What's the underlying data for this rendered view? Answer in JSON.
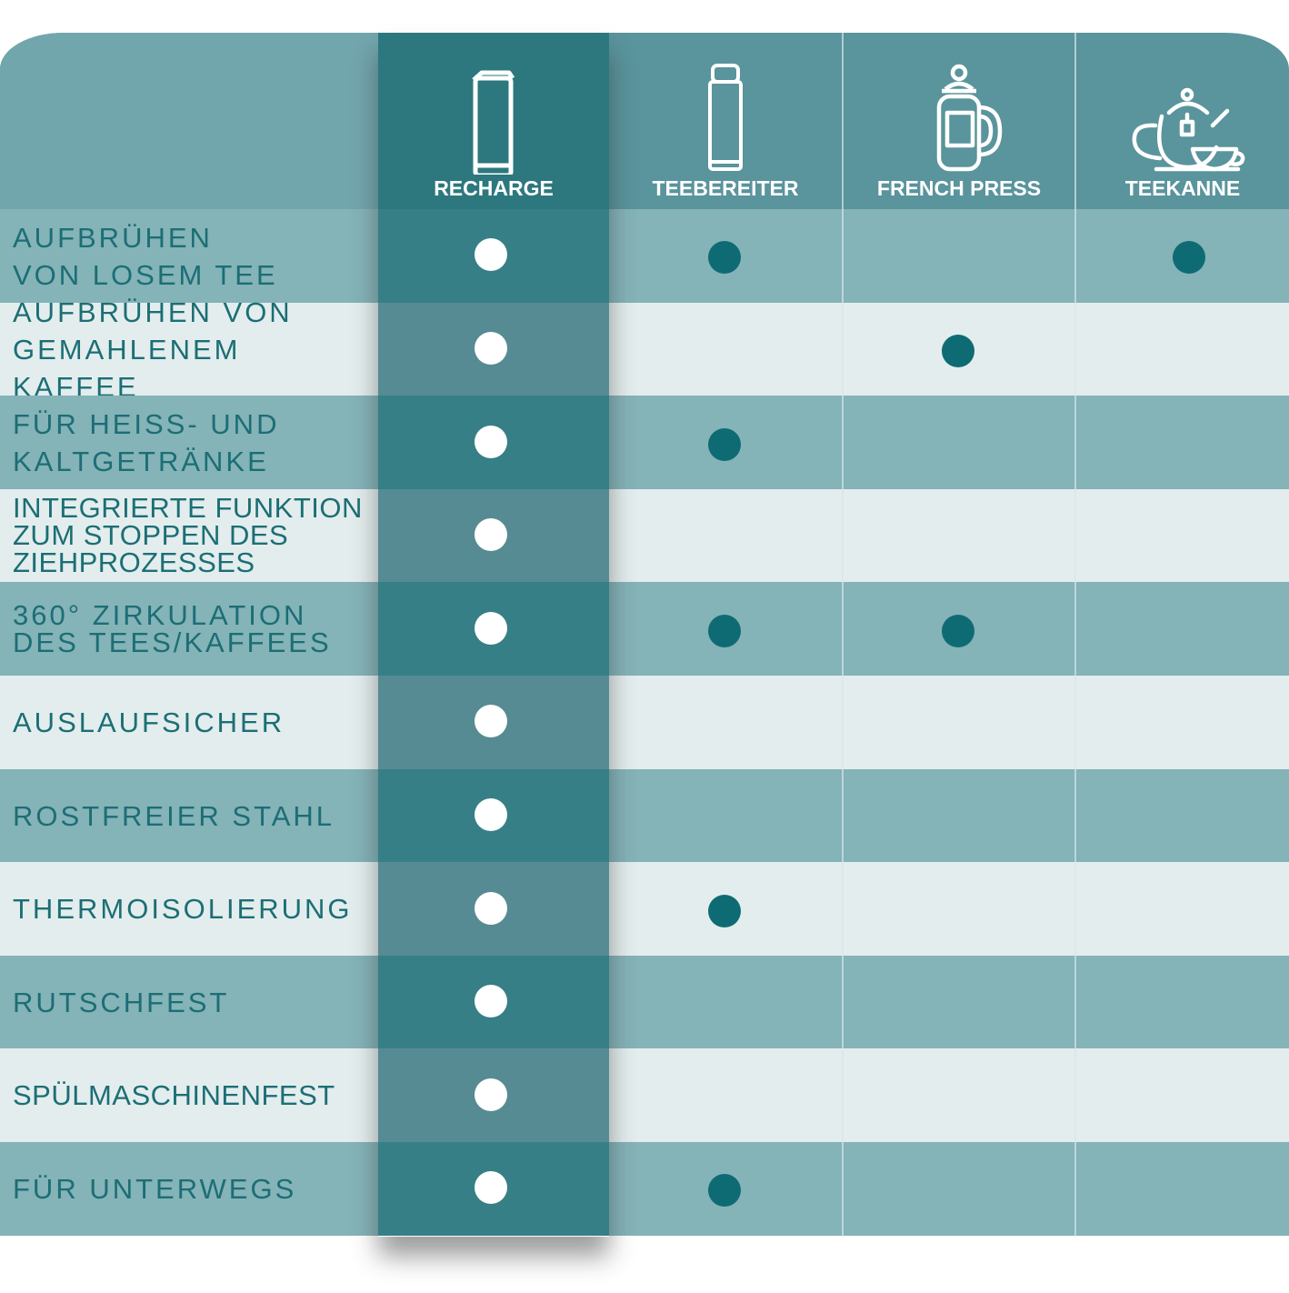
{
  "columns": [
    {
      "label": "RECHARGE",
      "icon": "travel-mug-icon"
    },
    {
      "label": "TEEBEREITER",
      "icon": "tea-flask-icon"
    },
    {
      "label": "FRENCH PRESS",
      "icon": "french-press-icon"
    },
    {
      "label": "TEEKANNE",
      "icon": "teapot-icon"
    }
  ],
  "rows": [
    {
      "label": "AUFBRÜHEN\nVON LOSEM TEE",
      "marks": [
        true,
        true,
        false,
        true
      ]
    },
    {
      "label": "AUFBRÜHEN VON\nGEMAHLENEM KAFFEE",
      "marks": [
        true,
        false,
        true,
        false
      ]
    },
    {
      "label": "FÜR HEISS- UND\nKALTGETRÄNKE",
      "marks": [
        true,
        true,
        false,
        false
      ]
    },
    {
      "label": "INTEGRIERTE FUNKTION\nZUM STOPPEN DES\nZIEHPROZESSES",
      "marks": [
        true,
        false,
        false,
        false
      ]
    },
    {
      "label": "360° ZIRKULATION\nDES TEES/KAFFEES",
      "marks": [
        true,
        true,
        true,
        false
      ]
    },
    {
      "label": "AUSLAUFSICHER",
      "marks": [
        true,
        false,
        false,
        false
      ]
    },
    {
      "label": "ROSTFREIER STAHL",
      "marks": [
        true,
        false,
        false,
        false
      ]
    },
    {
      "label": "THERMOISOLIERUNG",
      "marks": [
        true,
        true,
        false,
        false
      ]
    },
    {
      "label": "RUTSCHFEST",
      "marks": [
        true,
        false,
        false,
        false
      ]
    },
    {
      "label": "SPÜLMASCHINENFEST",
      "marks": [
        true,
        false,
        false,
        false
      ]
    },
    {
      "label": "FÜR UNTERWEGS",
      "marks": [
        true,
        true,
        false,
        false
      ]
    }
  ],
  "colors": {
    "header": "#5a949c",
    "recharge": "#2d787e",
    "row_dark": "#84b3b8",
    "row_light": "#e3eded",
    "text": "#1c6e75",
    "dot_highlight": "#ffffff",
    "dot_other": "#0f6b73"
  }
}
